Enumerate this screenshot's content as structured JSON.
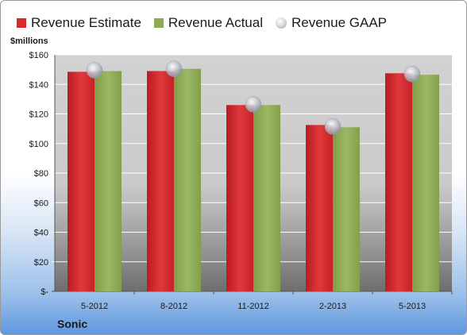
{
  "legend": [
    {
      "label": "Revenue Estimate",
      "color": "#d9292d",
      "shape": "square"
    },
    {
      "label": "Revenue Actual",
      "color": "#8fac55",
      "shape": "square"
    },
    {
      "label": "Revenue GAAP",
      "color": "#c7cbd4",
      "shape": "circle"
    }
  ],
  "unit_label": "$millions",
  "company": "Sonic",
  "chart_data": {
    "type": "bar",
    "title": "",
    "xlabel": "",
    "ylabel": "$millions",
    "ylim": [
      0,
      160
    ],
    "y_ticks": [
      "$-",
      "$20",
      "$40",
      "$60",
      "$80",
      "$100",
      "$120",
      "$140",
      "$160"
    ],
    "y_tick_values": [
      0,
      20,
      40,
      60,
      80,
      100,
      120,
      140,
      160
    ],
    "categories": [
      "5-2012",
      "8-2012",
      "11-2012",
      "2-2013",
      "5-2013"
    ],
    "series": [
      {
        "name": "Revenue Estimate",
        "type": "bar",
        "color": "#d9292d",
        "values": [
          148.5,
          149,
          126,
          112.5,
          147.5
        ]
      },
      {
        "name": "Revenue Actual",
        "type": "bar",
        "color": "#8fac55",
        "values": [
          149,
          150.5,
          126,
          111,
          146.5
        ]
      },
      {
        "name": "Revenue GAAP",
        "type": "marker",
        "color": "#c7cbd4",
        "values": [
          149.5,
          150.5,
          126.5,
          111.5,
          147
        ]
      }
    ],
    "grid": true,
    "legend_position": "top"
  }
}
